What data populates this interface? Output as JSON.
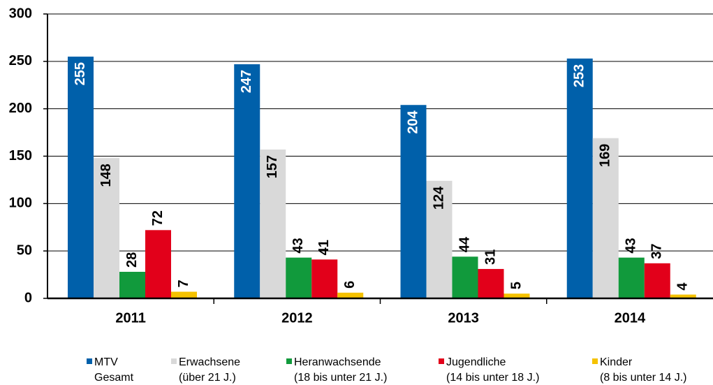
{
  "chart_data": {
    "type": "bar",
    "categories": [
      "2011",
      "2012",
      "2013",
      "2014"
    ],
    "series": [
      {
        "name": "MTV Gesamt",
        "color": "#0060aa",
        "values": [
          255,
          247,
          204,
          253
        ]
      },
      {
        "name": "Erwachsene (über 21 J.)",
        "color": "#d9d9d9",
        "values": [
          148,
          157,
          124,
          169
        ]
      },
      {
        "name": "Heranwachsende (18 bis unter 21 J.)",
        "color": "#119a3c",
        "values": [
          28,
          43,
          44,
          43
        ]
      },
      {
        "name": "Jugendliche (14 bis unter 18 J.)",
        "color": "#e2001a",
        "values": [
          72,
          41,
          31,
          37
        ]
      },
      {
        "name": "Kinder (8 bis unter 14 J.)",
        "color": "#f5c200",
        "values": [
          7,
          6,
          5,
          4
        ]
      }
    ],
    "ylim": [
      0,
      300
    ],
    "yticks": [
      0,
      50,
      100,
      150,
      200,
      250,
      300
    ],
    "grid": true,
    "legend": "bottom"
  }
}
